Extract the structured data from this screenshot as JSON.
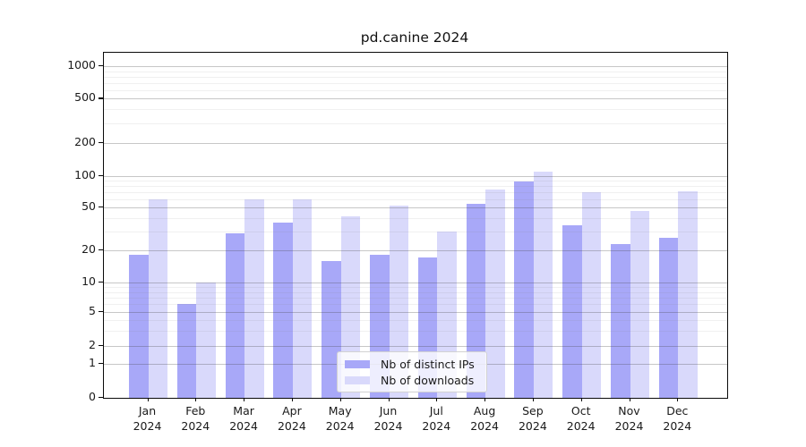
{
  "chart_data": {
    "type": "bar",
    "title": "pd.canine 2024",
    "year": "2024",
    "categories": [
      "Jan",
      "Feb",
      "Mar",
      "Apr",
      "May",
      "Jun",
      "Jul",
      "Aug",
      "Sep",
      "Oct",
      "Nov",
      "Dec"
    ],
    "series": [
      {
        "name": "Nb of distinct IPs",
        "color": "#a8a8f8",
        "values": [
          18,
          6,
          29,
          36,
          16,
          18,
          17,
          54,
          88,
          34,
          23,
          26
        ]
      },
      {
        "name": "Nb of downloads",
        "color": "#d9d9fb",
        "values": [
          60,
          10,
          60,
          60,
          41,
          52,
          30,
          75,
          110,
          70,
          46,
          72
        ]
      }
    ],
    "yticks": [
      0,
      1,
      2,
      5,
      10,
      20,
      50,
      100,
      200,
      500,
      1000
    ],
    "yscale": "symlog",
    "ylim": [
      0,
      1350
    ],
    "xlabel": "",
    "ylabel": "",
    "grid": true,
    "legend_position": "lower center inside"
  }
}
